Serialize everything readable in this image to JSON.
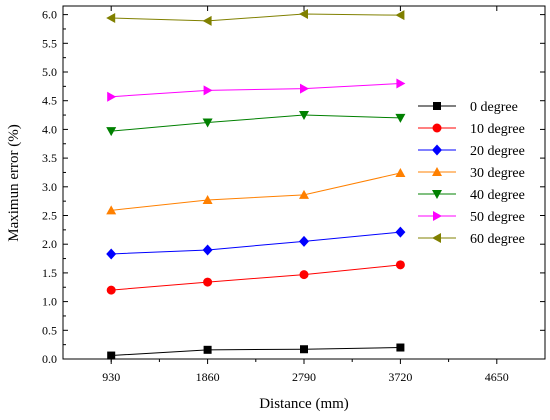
{
  "chart_data": {
    "type": "line",
    "title": "",
    "xlabel": "Distance (mm)",
    "ylabel": "Maximun error (%)",
    "x_ticks": [
      "930",
      "1860",
      "2790",
      "3720",
      "4650"
    ],
    "y_ticks": [
      "0.0",
      "0.5",
      "1.0",
      "1.5",
      "2.0",
      "2.5",
      "3.0",
      "3.5",
      "4.0",
      "4.5",
      "5.0",
      "5.5",
      "6.0"
    ],
    "xlim": [
      465,
      5115
    ],
    "ylim": [
      0,
      6.15
    ],
    "x": [
      930,
      1860,
      2790,
      3720
    ],
    "legend_position": "right",
    "grid": false,
    "series": [
      {
        "name": "0 degree",
        "color": "#000000",
        "marker": "square",
        "values": [
          0.06,
          0.16,
          0.17,
          0.2
        ]
      },
      {
        "name": "10 degree",
        "color": "#ff0000",
        "marker": "circle",
        "values": [
          1.2,
          1.34,
          1.47,
          1.64
        ]
      },
      {
        "name": "20 degree",
        "color": "#0000ff",
        "marker": "diamond",
        "values": [
          1.83,
          1.9,
          2.05,
          2.21
        ]
      },
      {
        "name": "30 degree",
        "color": "#ff8000",
        "marker": "triangle-up",
        "values": [
          2.59,
          2.77,
          2.86,
          3.24
        ]
      },
      {
        "name": "40 degree",
        "color": "#008000",
        "marker": "triangle-down",
        "values": [
          3.97,
          4.12,
          4.25,
          4.2
        ]
      },
      {
        "name": "50 degree",
        "color": "#ff00ff",
        "marker": "triangle-right",
        "values": [
          4.57,
          4.68,
          4.71,
          4.8
        ]
      },
      {
        "name": "60 degree",
        "color": "#808000",
        "marker": "triangle-left",
        "values": [
          5.94,
          5.89,
          6.01,
          5.99
        ]
      }
    ]
  }
}
